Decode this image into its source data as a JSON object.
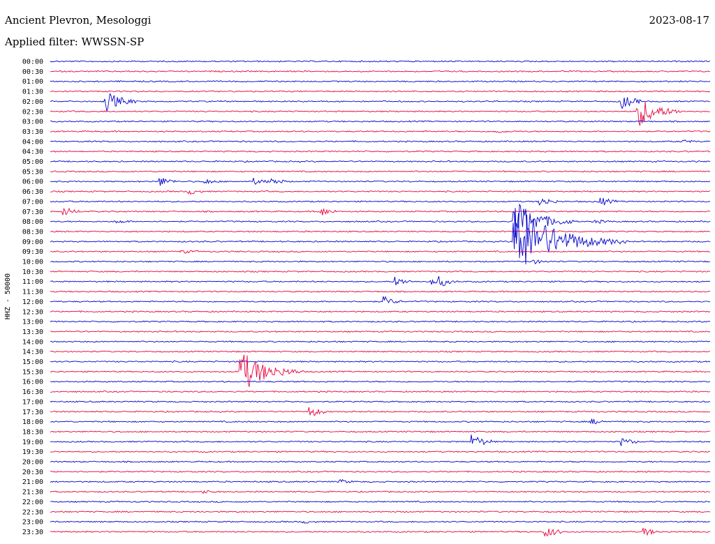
{
  "header": {
    "station": "Ancient Plevron, Mesologgi",
    "date": "2023-08-17",
    "filter_label": "Applied filter: WWSSN-SP"
  },
  "chart_data": {
    "type": "line",
    "title": "Ancient Plevron, Mesologgi",
    "ylabel": "HHZ - 50000",
    "xlabel": "",
    "trace_colors": [
      "#0000cc",
      "#e8003c"
    ],
    "rows": [
      "00:00",
      "00:30",
      "01:00",
      "01:30",
      "02:00",
      "02:30",
      "03:00",
      "03:30",
      "04:00",
      "04:30",
      "05:00",
      "05:30",
      "06:00",
      "06:30",
      "07:00",
      "07:30",
      "08:00",
      "08:30",
      "09:00",
      "09:30",
      "10:00",
      "10:30",
      "11:00",
      "11:30",
      "12:00",
      "12:30",
      "13:00",
      "13:30",
      "14:00",
      "14:30",
      "15:00",
      "15:30",
      "16:00",
      "16:30",
      "17:00",
      "17:30",
      "18:00",
      "18:30",
      "19:00",
      "19:30",
      "20:00",
      "20:30",
      "21:00",
      "21:30",
      "22:00",
      "22:30",
      "23:00",
      "23:30"
    ],
    "x_range_minutes": [
      0,
      30
    ],
    "events": [
      {
        "row": "02:00",
        "minute": 2.5,
        "amplitude": 1.1
      },
      {
        "row": "02:00",
        "minute": 26.0,
        "amplitude": 0.7
      },
      {
        "row": "02:30",
        "minute": 26.7,
        "amplitude": 1.6
      },
      {
        "row": "03:30",
        "minute": 20.2,
        "amplitude": 0.2
      },
      {
        "row": "04:00",
        "minute": 28.8,
        "amplitude": 0.15
      },
      {
        "row": "06:00",
        "minute": 5.0,
        "amplitude": 0.45
      },
      {
        "row": "06:00",
        "minute": 7.0,
        "amplitude": 0.3
      },
      {
        "row": "06:00",
        "minute": 9.3,
        "amplitude": 0.3
      },
      {
        "row": "06:00",
        "minute": 10.0,
        "amplitude": 0.4
      },
      {
        "row": "06:30",
        "minute": 6.3,
        "amplitude": 0.3
      },
      {
        "row": "07:00",
        "minute": 22.3,
        "amplitude": 0.45
      },
      {
        "row": "07:00",
        "minute": 25.0,
        "amplitude": 0.45
      },
      {
        "row": "07:30",
        "minute": 0.6,
        "amplitude": 0.45
      },
      {
        "row": "07:30",
        "minute": 12.3,
        "amplitude": 0.45
      },
      {
        "row": "08:00",
        "minute": 3.0,
        "amplitude": 0.2
      },
      {
        "row": "08:00",
        "minute": 21.1,
        "amplitude": 2.2
      },
      {
        "row": "08:00",
        "minute": 24.8,
        "amplitude": 0.2
      },
      {
        "row": "09:00",
        "minute": 21.1,
        "amplitude": 4.0
      },
      {
        "row": "09:30",
        "minute": 6.0,
        "amplitude": 0.2
      },
      {
        "row": "10:00",
        "minute": 22.0,
        "amplitude": 0.2
      },
      {
        "row": "11:00",
        "minute": 15.7,
        "amplitude": 0.45
      },
      {
        "row": "11:00",
        "minute": 17.3,
        "amplitude": 0.4
      },
      {
        "row": "11:00",
        "minute": 17.7,
        "amplitude": 0.45
      },
      {
        "row": "12:00",
        "minute": 15.2,
        "amplitude": 0.45
      },
      {
        "row": "15:30",
        "minute": 8.6,
        "amplitude": 2.3
      },
      {
        "row": "17:30",
        "minute": 11.8,
        "amplitude": 0.55
      },
      {
        "row": "18:00",
        "minute": 24.6,
        "amplitude": 0.3
      },
      {
        "row": "19:00",
        "minute": 19.2,
        "amplitude": 0.7
      },
      {
        "row": "19:00",
        "minute": 26.0,
        "amplitude": 0.4
      },
      {
        "row": "21:00",
        "minute": 13.2,
        "amplitude": 0.2
      },
      {
        "row": "21:30",
        "minute": 7.0,
        "amplitude": 0.15
      },
      {
        "row": "23:00",
        "minute": 11.5,
        "amplitude": 0.15
      },
      {
        "row": "23:30",
        "minute": 22.5,
        "amplitude": 0.6
      },
      {
        "row": "23:30",
        "minute": 27.0,
        "amplitude": 0.4
      }
    ]
  }
}
